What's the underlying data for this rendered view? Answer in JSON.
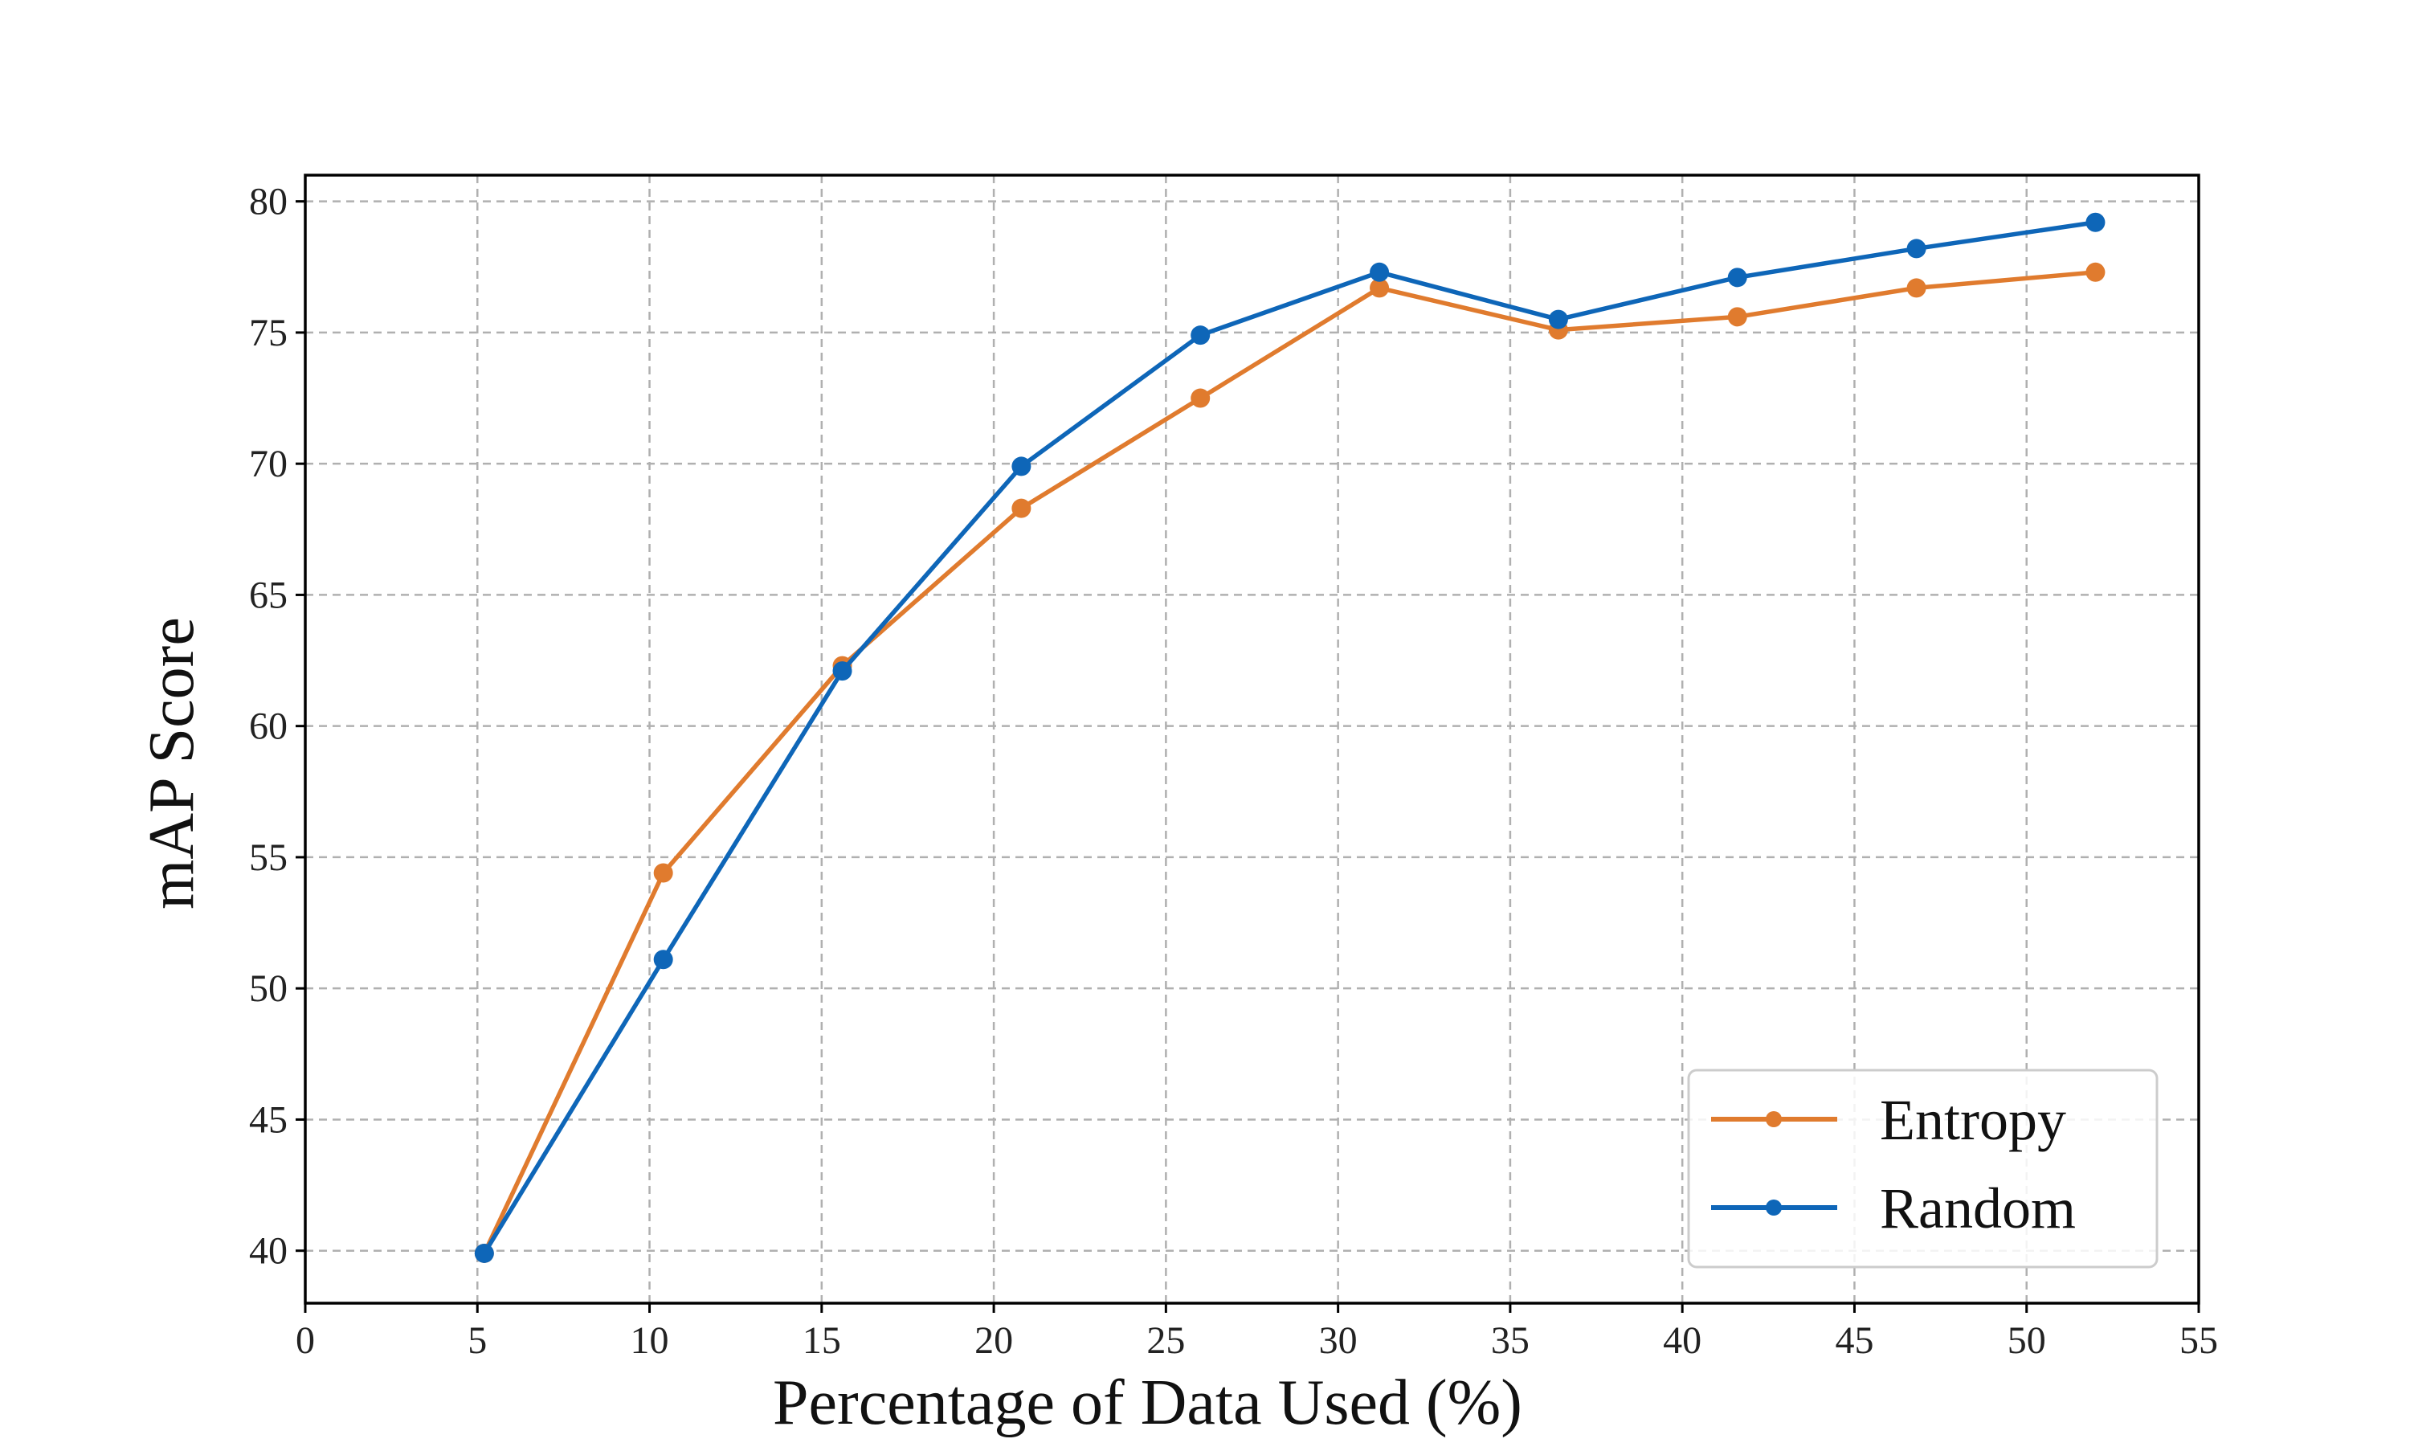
{
  "chart_data": {
    "type": "line",
    "title": "",
    "xlabel": "Percentage of Data Used (%)",
    "ylabel": "mAP Score",
    "xlim": [
      0,
      55
    ],
    "ylim": [
      38,
      81
    ],
    "xticks": [
      0,
      5,
      10,
      15,
      20,
      25,
      30,
      35,
      40,
      45,
      50,
      55
    ],
    "yticks": [
      40,
      45,
      50,
      55,
      60,
      65,
      70,
      75,
      80
    ],
    "grid": true,
    "legend_position": "lower-right",
    "x": [
      5.2,
      10.4,
      15.6,
      20.8,
      26.0,
      31.2,
      36.4,
      41.6,
      46.8,
      52.0
    ],
    "series": [
      {
        "name": "Entropy",
        "color": "#e07b2e",
        "values": [
          39.9,
          54.4,
          62.3,
          68.3,
          72.5,
          76.7,
          75.1,
          75.6,
          76.7,
          77.3
        ]
      },
      {
        "name": "Random",
        "color": "#0e66b8",
        "values": [
          39.9,
          51.1,
          62.1,
          69.9,
          74.9,
          77.3,
          75.5,
          77.1,
          78.2,
          79.2
        ]
      }
    ]
  }
}
